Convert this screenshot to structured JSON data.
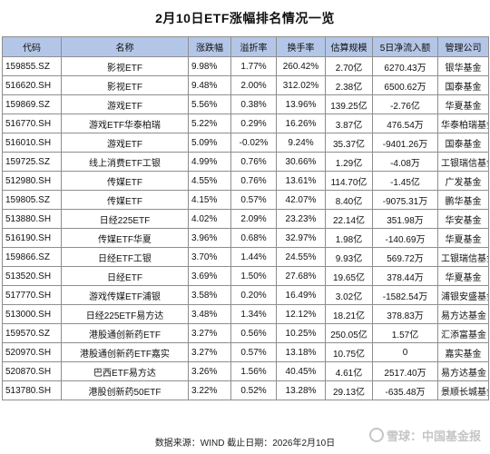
{
  "title": "2月10日ETF涨幅排名情况一览",
  "headers": [
    "代码",
    "名称",
    "涨跌幅",
    "溢折率",
    "换手率",
    "估算规模",
    "5日净流入额",
    "管理公司"
  ],
  "rows": [
    [
      "159855.SZ",
      "影视ETF",
      "9.98%",
      "1.77%",
      "260.42%",
      "2.70亿",
      "6270.43万",
      "银华基金"
    ],
    [
      "516620.SH",
      "影视ETF",
      "9.48%",
      "2.00%",
      "312.02%",
      "2.38亿",
      "6500.62万",
      "国泰基金"
    ],
    [
      "159869.SZ",
      "游戏ETF",
      "5.56%",
      "0.38%",
      "13.96%",
      "139.25亿",
      "-2.76亿",
      "华夏基金"
    ],
    [
      "516770.SH",
      "游戏ETF华泰柏瑞",
      "5.22%",
      "0.29%",
      "16.26%",
      "3.87亿",
      "476.54万",
      "华泰柏瑞基金"
    ],
    [
      "516010.SH",
      "游戏ETF",
      "5.09%",
      "-0.02%",
      "9.24%",
      "35.37亿",
      "-9401.26万",
      "国泰基金"
    ],
    [
      "159725.SZ",
      "线上消费ETF工银",
      "4.99%",
      "0.76%",
      "30.66%",
      "1.29亿",
      "-4.08万",
      "工银瑞信基金"
    ],
    [
      "512980.SH",
      "传媒ETF",
      "4.55%",
      "0.76%",
      "13.61%",
      "114.70亿",
      "-1.45亿",
      "广发基金"
    ],
    [
      "159805.SZ",
      "传媒ETF",
      "4.15%",
      "0.57%",
      "42.07%",
      "8.40亿",
      "-9075.31万",
      "鹏华基金"
    ],
    [
      "513880.SH",
      "日经225ETF",
      "4.02%",
      "2.09%",
      "23.23%",
      "22.14亿",
      "351.98万",
      "华安基金"
    ],
    [
      "516190.SH",
      "传媒ETF华夏",
      "3.96%",
      "0.68%",
      "32.97%",
      "1.98亿",
      "-140.69万",
      "华夏基金"
    ],
    [
      "159866.SZ",
      "日经ETF工银",
      "3.70%",
      "1.44%",
      "24.55%",
      "9.93亿",
      "569.72万",
      "工银瑞信基金"
    ],
    [
      "513520.SH",
      "日经ETF",
      "3.69%",
      "1.50%",
      "27.68%",
      "19.65亿",
      "378.44万",
      "华夏基金"
    ],
    [
      "517770.SH",
      "游戏传媒ETF浦银",
      "3.58%",
      "0.20%",
      "16.49%",
      "3.02亿",
      "-1582.54万",
      "浦银安盛基金"
    ],
    [
      "513000.SH",
      "日经225ETF易方达",
      "3.48%",
      "1.34%",
      "12.12%",
      "18.21亿",
      "378.83万",
      "易方达基金"
    ],
    [
      "159570.SZ",
      "港股通创新药ETF",
      "3.27%",
      "0.56%",
      "10.25%",
      "250.05亿",
      "1.57亿",
      "汇添富基金"
    ],
    [
      "520970.SH",
      "港股通创新药ETF嘉实",
      "3.27%",
      "0.57%",
      "13.18%",
      "10.75亿",
      "0",
      "嘉实基金"
    ],
    [
      "520870.SH",
      "巴西ETF易方达",
      "3.26%",
      "1.56%",
      "40.45%",
      "4.61亿",
      "2517.40万",
      "易方达基金"
    ],
    [
      "513780.SH",
      "港股创新药50ETF",
      "3.22%",
      "0.52%",
      "13.28%",
      "29.13亿",
      "-635.48万",
      "景顺长城基金"
    ]
  ],
  "footer": "数据来源：WIND 截止日期：2026年2月10日",
  "watermark": "雪球：中国基金报",
  "colors": {
    "header_bg": "#b4c6e7",
    "border": "#8e8e8e"
  }
}
